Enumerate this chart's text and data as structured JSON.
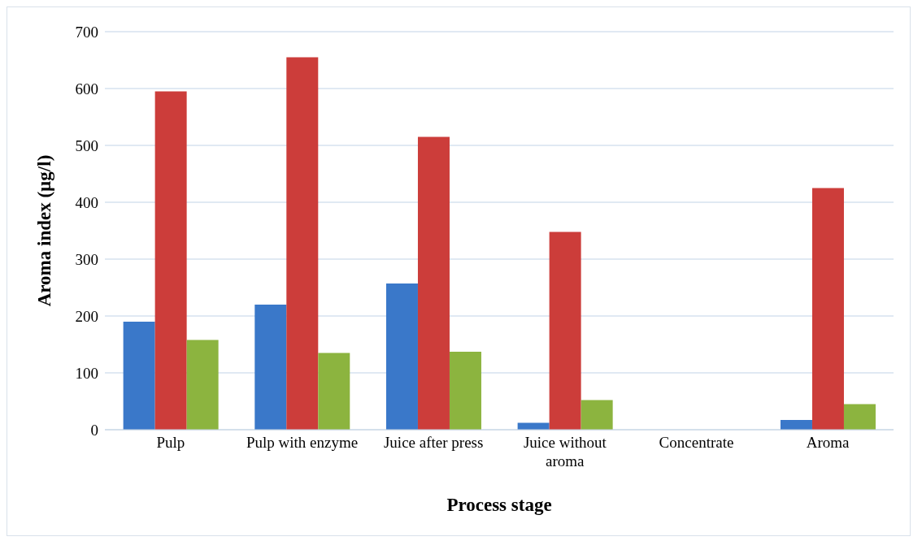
{
  "chart_data": {
    "type": "bar",
    "xlabel": "Process stage",
    "ylabel": "Aroma index (µg/l)",
    "categories": [
      "Pulp",
      "Pulp with enzyme",
      "Juice after press",
      "Juice without aroma",
      "Concentrate",
      "Aroma"
    ],
    "series": [
      {
        "color": "#3a78c9",
        "values": [
          190,
          220,
          257,
          12,
          0,
          17
        ]
      },
      {
        "color": "#cc3d3a",
        "values": [
          595,
          655,
          515,
          348,
          0,
          425
        ]
      },
      {
        "color": "#8cb43f",
        "values": [
          158,
          135,
          137,
          52,
          0,
          45
        ]
      }
    ],
    "ylim": [
      0,
      700
    ],
    "yticks": [
      0,
      100,
      200,
      300,
      400,
      500,
      600,
      700
    ],
    "grid": "y",
    "legend": false
  }
}
